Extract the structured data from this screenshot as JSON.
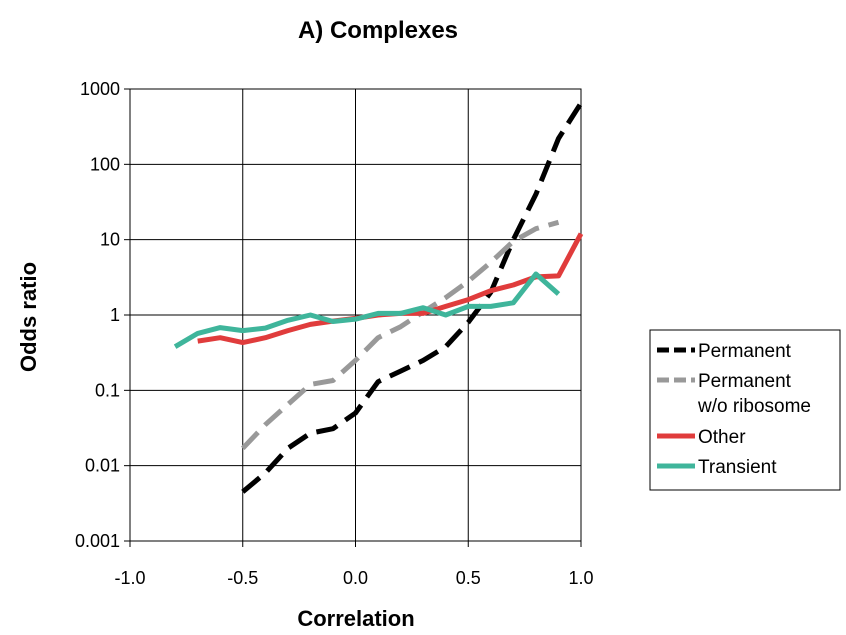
{
  "chart_data": {
    "type": "line",
    "title": "A) Complexes",
    "xlabel": "Correlation",
    "ylabel": "Odds ratio",
    "xlim": [
      -1.0,
      1.0
    ],
    "ylim": [
      0.001,
      1000
    ],
    "yscale": "log",
    "grid": true,
    "legend_position": "right",
    "x_ticks": [
      "-1.0",
      "-0.5",
      "0.0",
      "0.5",
      "1.0"
    ],
    "y_ticks": [
      "0.001",
      "0.01",
      "0.1",
      "1",
      "10",
      "100",
      "1000"
    ],
    "series": [
      {
        "name": "Permanent",
        "color": "#000000",
        "dash": true,
        "x": [
          -0.5,
          -0.4,
          -0.3,
          -0.2,
          -0.1,
          0.0,
          0.1,
          0.2,
          0.3,
          0.4,
          0.5,
          0.6,
          0.7,
          0.8,
          0.9,
          1.0
        ],
        "y": [
          0.0045,
          0.008,
          0.017,
          0.027,
          0.031,
          0.05,
          0.13,
          0.18,
          0.25,
          0.38,
          0.8,
          2.0,
          10,
          40,
          220,
          650
        ]
      },
      {
        "name": "Permanent w/o ribosome",
        "name_lines": [
          "Permanent",
          "w/o ribosome"
        ],
        "color": "#999999",
        "dash": true,
        "x": [
          -0.5,
          -0.4,
          -0.3,
          -0.2,
          -0.1,
          0.0,
          0.1,
          0.2,
          0.3,
          0.4,
          0.5,
          0.6,
          0.7,
          0.8,
          0.9
        ],
        "y": [
          0.017,
          0.035,
          0.065,
          0.12,
          0.135,
          0.25,
          0.5,
          0.7,
          1.1,
          1.7,
          2.8,
          5.0,
          9.5,
          14,
          17
        ]
      },
      {
        "name": "Other",
        "color": "#e03c3c",
        "dash": false,
        "x": [
          -0.7,
          -0.6,
          -0.5,
          -0.4,
          -0.3,
          -0.2,
          -0.1,
          0.0,
          0.1,
          0.2,
          0.3,
          0.4,
          0.5,
          0.6,
          0.7,
          0.8,
          0.9,
          1.0
        ],
        "y": [
          0.45,
          0.5,
          0.43,
          0.5,
          0.62,
          0.75,
          0.83,
          0.9,
          1.0,
          1.05,
          1.05,
          1.3,
          1.6,
          2.1,
          2.5,
          3.2,
          3.3,
          12
        ]
      },
      {
        "name": "Transient",
        "color": "#3fb59b",
        "dash": false,
        "x": [
          -0.8,
          -0.7,
          -0.6,
          -0.5,
          -0.4,
          -0.3,
          -0.2,
          -0.1,
          0.0,
          0.1,
          0.2,
          0.3,
          0.4,
          0.5,
          0.6,
          0.7,
          0.8,
          0.9
        ],
        "y": [
          0.38,
          0.57,
          0.68,
          0.62,
          0.67,
          0.85,
          1.0,
          0.82,
          0.88,
          1.05,
          1.05,
          1.25,
          1.0,
          1.3,
          1.3,
          1.45,
          3.5,
          1.9
        ]
      }
    ]
  }
}
